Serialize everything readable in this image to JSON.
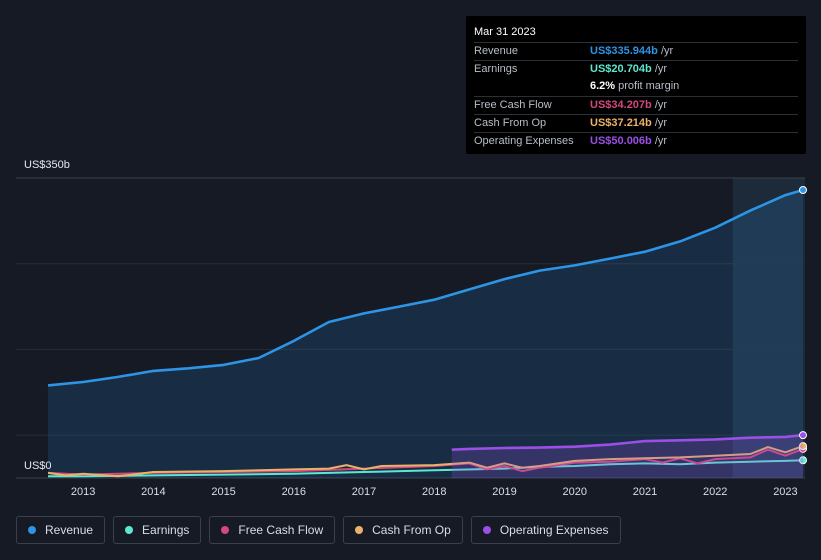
{
  "tooltip": {
    "date": "Mar 31 2023",
    "rows": [
      {
        "label": "Revenue",
        "value": "US$335.944b",
        "unit": " /yr",
        "color": "#2d94e6"
      },
      {
        "label": "Earnings",
        "value": "US$20.704b",
        "unit": " /yr",
        "color": "#5de6d0"
      },
      {
        "label": "",
        "value": "6.2%",
        "unit": " profit margin",
        "color": "#ffffff"
      },
      {
        "label": "Free Cash Flow",
        "value": "US$34.207b",
        "unit": " /yr",
        "color": "#d2497d"
      },
      {
        "label": "Cash From Op",
        "value": "US$37.214b",
        "unit": " /yr",
        "color": "#e8b26b"
      },
      {
        "label": "Operating Expenses",
        "value": "US$50.006b",
        "unit": " /yr",
        "color": "#9b4fe6"
      }
    ]
  },
  "legend": [
    {
      "label": "Revenue",
      "color": "#2d94e6"
    },
    {
      "label": "Earnings",
      "color": "#5de6d0"
    },
    {
      "label": "Free Cash Flow",
      "color": "#d2497d"
    },
    {
      "label": "Cash From Op",
      "color": "#e8b26b"
    },
    {
      "label": "Operating Expenses",
      "color": "#9b4fe6"
    }
  ],
  "chart_data": {
    "type": "area",
    "title": "",
    "xlabel": "",
    "ylabel": "",
    "y_axis_labels": {
      "top": "US$350b",
      "zero": "US$0"
    },
    "ylim": [
      0,
      350
    ],
    "xlim": [
      2012.5,
      2023.25
    ],
    "x_ticks": [
      2013,
      2014,
      2015,
      2016,
      2017,
      2018,
      2019,
      2020,
      2021,
      2022,
      2023
    ],
    "x_tick_labels": [
      "2013",
      "2014",
      "2015",
      "2016",
      "2017",
      "2018",
      "2019",
      "2020",
      "2021",
      "2022",
      "2023"
    ],
    "highlight_from": 2022.25,
    "series": [
      {
        "name": "Revenue",
        "color": "#2d94e6",
        "area": true,
        "x": [
          2012.5,
          2013,
          2013.5,
          2014,
          2014.5,
          2015,
          2015.5,
          2016,
          2016.5,
          2017,
          2017.5,
          2018,
          2018.5,
          2019,
          2019.5,
          2020,
          2020.5,
          2021,
          2021.5,
          2022,
          2022.5,
          2023,
          2023.25
        ],
        "y": [
          108,
          112,
          118,
          125,
          128,
          132,
          140,
          160,
          182,
          192,
          200,
          208,
          220,
          232,
          242,
          248,
          256,
          264,
          276,
          292,
          312,
          330,
          336
        ]
      },
      {
        "name": "Earnings",
        "color": "#5de6d0",
        "area": false,
        "x": [
          2012.5,
          2013,
          2014,
          2015,
          2016,
          2017,
          2018,
          2019,
          2019.5,
          2020,
          2020.5,
          2021,
          2021.5,
          2022,
          2022.5,
          2023,
          2023.25
        ],
        "y": [
          2,
          2,
          3,
          4,
          5,
          7,
          9,
          11,
          13,
          14,
          16,
          17,
          16,
          18,
          19,
          20,
          20.7
        ]
      },
      {
        "name": "Free Cash Flow",
        "color": "#d2497d",
        "area": false,
        "x": [
          2012.5,
          2013,
          2014,
          2015,
          2016,
          2017,
          2018,
          2018.5,
          2018.75,
          2019,
          2019.25,
          2019.5,
          2020,
          2020.5,
          2021,
          2021.25,
          2021.5,
          2021.75,
          2022,
          2022.5,
          2022.75,
          2023,
          2023.25
        ],
        "y": [
          6,
          4,
          6,
          7,
          8,
          11,
          14,
          17,
          10,
          14,
          8,
          12,
          18,
          19,
          22,
          18,
          23,
          17,
          22,
          24,
          33,
          26,
          34
        ]
      },
      {
        "name": "Cash From Op",
        "color": "#e8b26b",
        "area": false,
        "x": [
          2012.5,
          2012.75,
          2013,
          2013.5,
          2014,
          2015,
          2016,
          2016.5,
          2016.75,
          2017,
          2017.25,
          2018,
          2018.5,
          2018.75,
          2019,
          2019.25,
          2019.5,
          2020,
          2020.5,
          2021,
          2021.5,
          2022,
          2022.5,
          2022.75,
          2023,
          2023.25
        ],
        "y": [
          6,
          3,
          5,
          2,
          7,
          8,
          10,
          11,
          15,
          10,
          14,
          15,
          18,
          12,
          17,
          12,
          14,
          20,
          22,
          23,
          24,
          26,
          28,
          36,
          30,
          37.2
        ]
      },
      {
        "name": "Operating Expenses",
        "color": "#9b4fe6",
        "area": true,
        "x": [
          2018.25,
          2018.5,
          2019,
          2019.5,
          2020,
          2020.5,
          2021,
          2021.5,
          2022,
          2022.5,
          2023,
          2023.25
        ],
        "y": [
          33,
          34,
          35,
          35.5,
          36.5,
          39,
          43,
          44,
          45,
          47,
          48,
          50
        ]
      }
    ]
  }
}
